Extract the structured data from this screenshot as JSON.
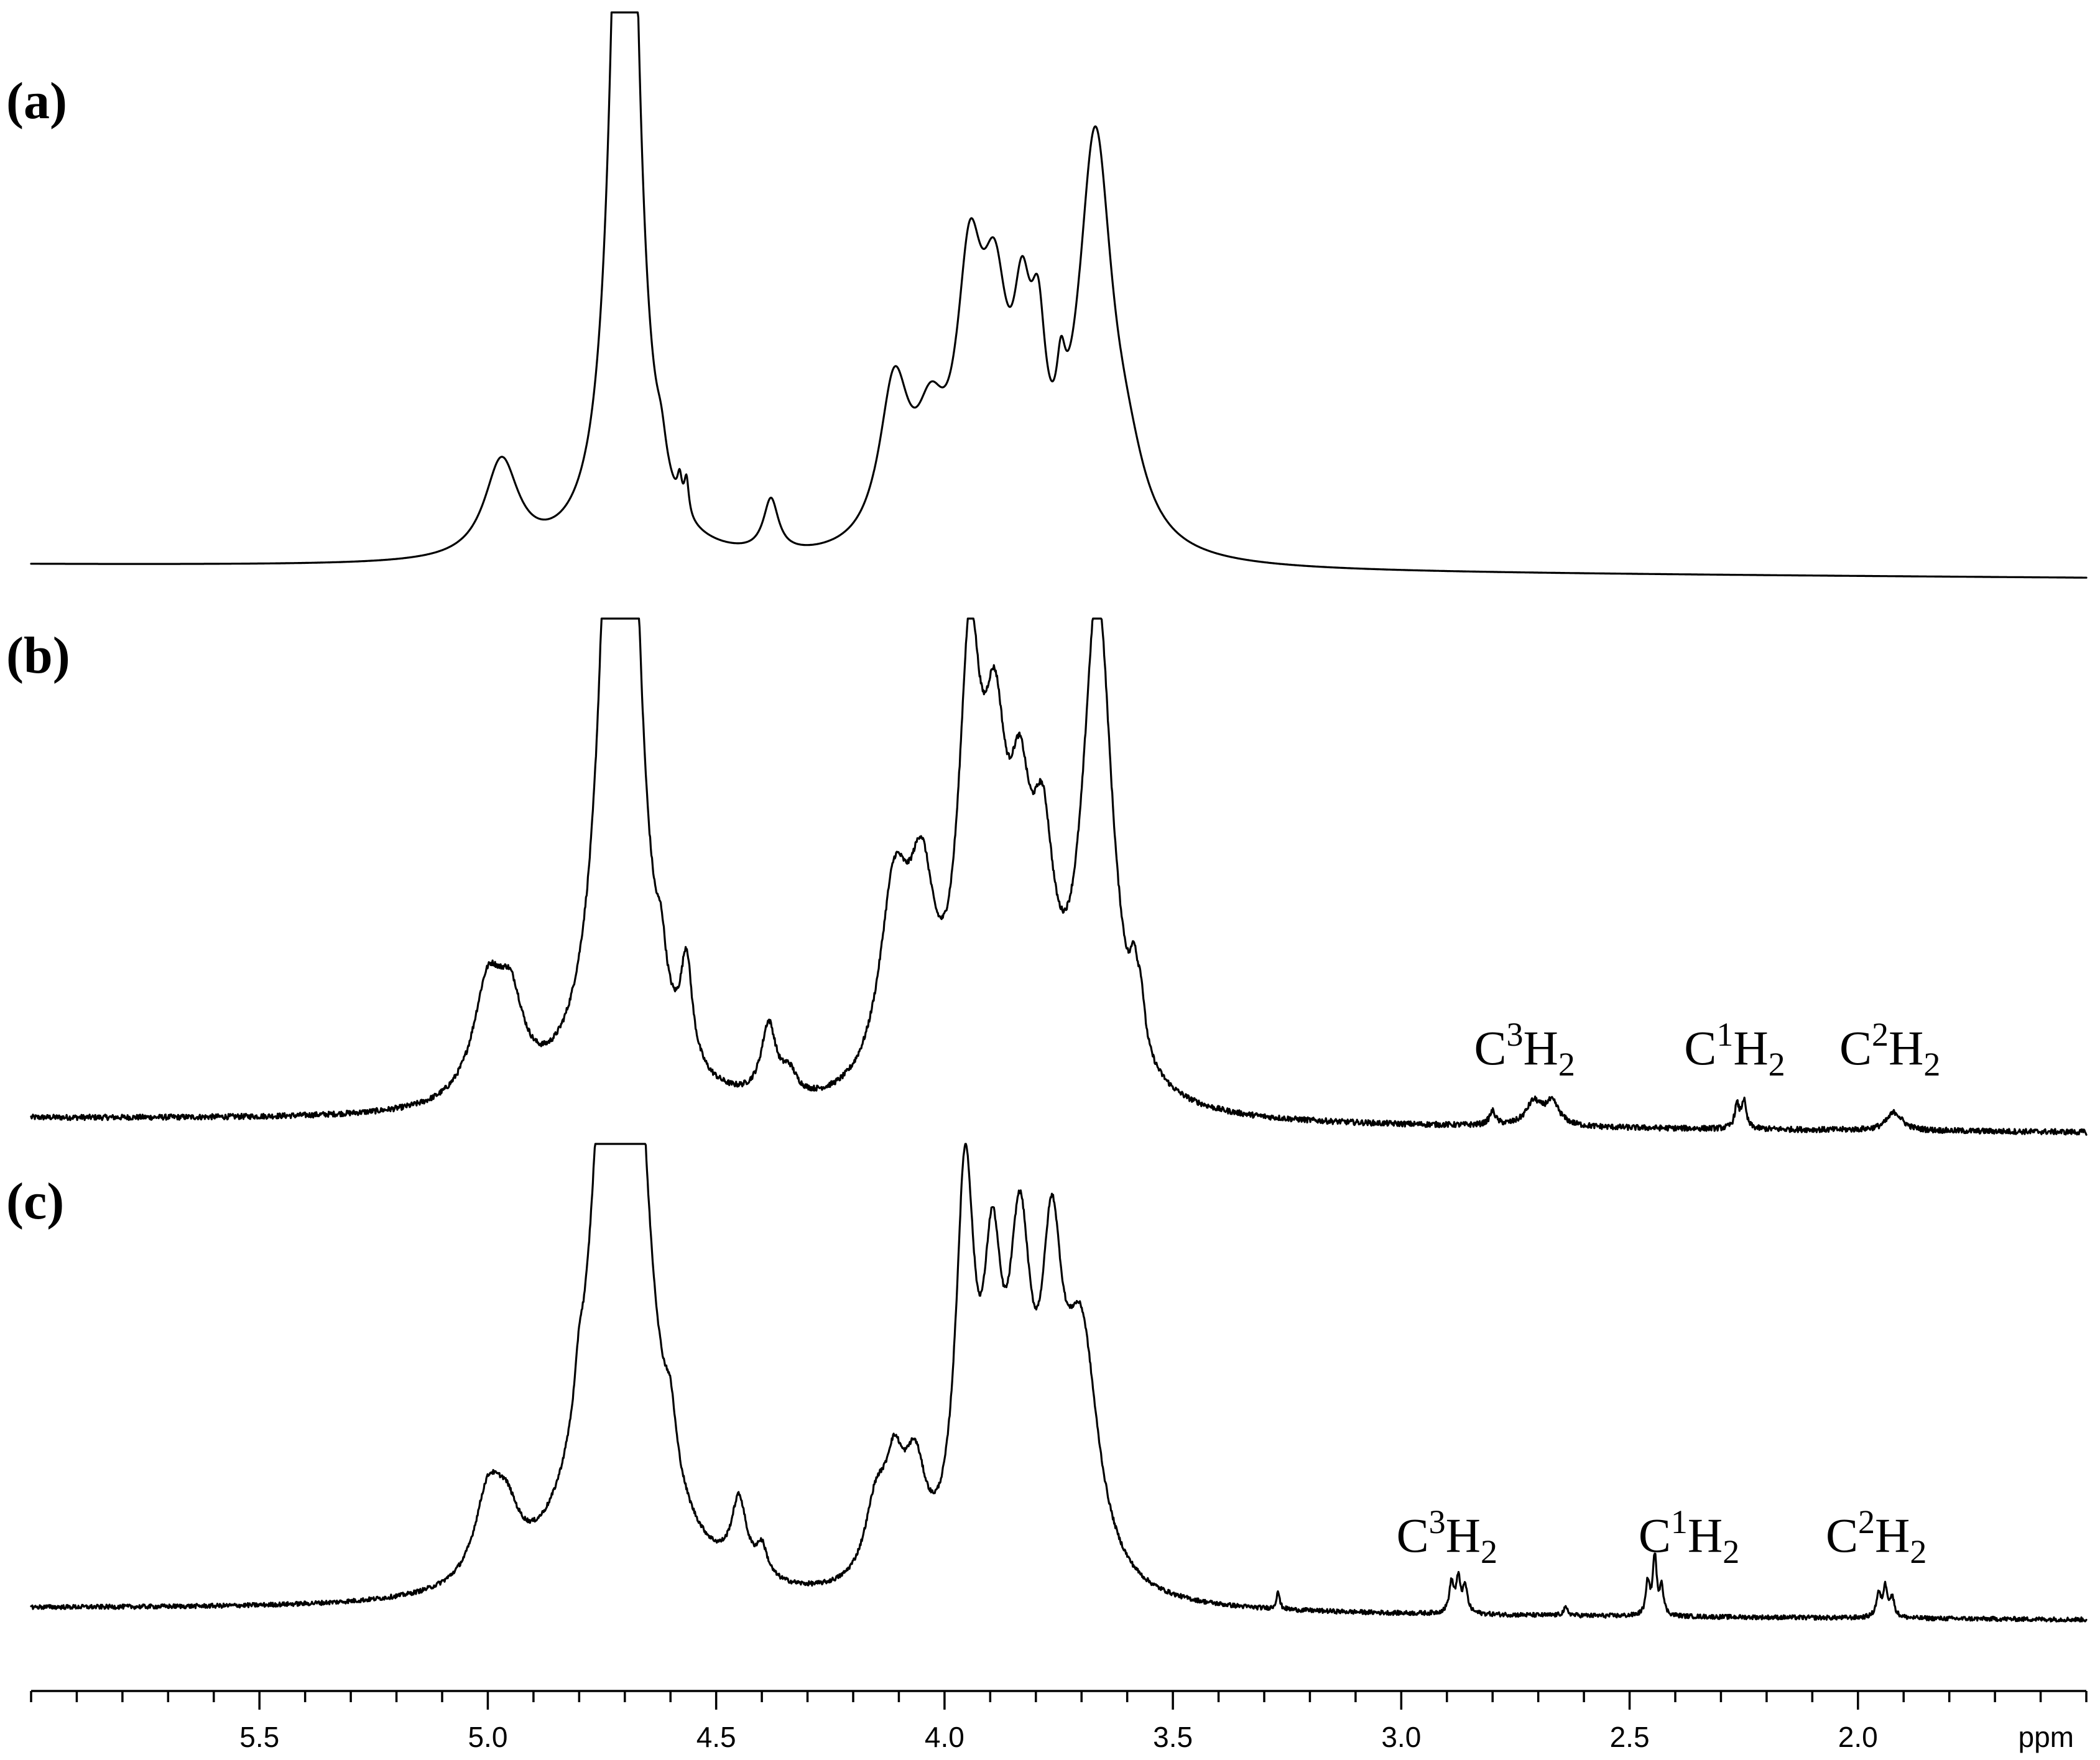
{
  "chart_data": {
    "type": "line",
    "title": "",
    "xlabel": "ppm",
    "ylabel": "",
    "x_reversed": true,
    "xlim": [
      6.0,
      1.5
    ],
    "x_ticks": [
      5.5,
      5.0,
      4.5,
      4.0,
      3.5,
      3.0,
      2.5,
      2.0
    ],
    "x_tick_labels": [
      "5.5",
      "5.0",
      "4.5",
      "4.0",
      "3.5",
      "3.0",
      "2.5",
      "2.0"
    ],
    "x_minor_step": 0.1,
    "grid": false,
    "panels": [
      {
        "label": "(a)",
        "baseline_left": 0.03,
        "baseline_right": 0.0,
        "peaks": [
          {
            "x": 4.97,
            "h": 0.22,
            "w": 0.045
          },
          {
            "x": 4.7,
            "h": 2.6,
            "w": 0.028
          },
          {
            "x": 4.62,
            "h": 0.07,
            "w": 0.014
          },
          {
            "x": 4.58,
            "h": 0.06,
            "w": 0.006
          },
          {
            "x": 4.565,
            "h": 0.08,
            "w": 0.006
          },
          {
            "x": 4.38,
            "h": 0.12,
            "w": 0.02
          },
          {
            "x": 4.11,
            "h": 0.36,
            "w": 0.04
          },
          {
            "x": 4.03,
            "h": 0.22,
            "w": 0.04
          },
          {
            "x": 3.945,
            "h": 0.55,
            "w": 0.035
          },
          {
            "x": 3.89,
            "h": 0.45,
            "w": 0.035
          },
          {
            "x": 3.83,
            "h": 0.38,
            "w": 0.025
          },
          {
            "x": 3.795,
            "h": 0.32,
            "w": 0.02
          },
          {
            "x": 3.745,
            "h": 0.15,
            "w": 0.012
          },
          {
            "x": 3.67,
            "h": 0.92,
            "w": 0.045
          },
          {
            "x": 3.6,
            "h": 0.12,
            "w": 0.05
          }
        ],
        "annotations": []
      },
      {
        "label": "(b)",
        "baseline_left": 0.03,
        "baseline_right": 0.0,
        "peaks": [
          {
            "x": 5.0,
            "h": 0.24,
            "w": 0.04
          },
          {
            "x": 4.95,
            "h": 0.18,
            "w": 0.035
          },
          {
            "x": 4.71,
            "h": 2.6,
            "w": 0.035
          },
          {
            "x": 4.62,
            "h": 0.1,
            "w": 0.012
          },
          {
            "x": 4.565,
            "h": 0.22,
            "w": 0.015
          },
          {
            "x": 4.385,
            "h": 0.16,
            "w": 0.02
          },
          {
            "x": 4.34,
            "h": 0.05,
            "w": 0.02
          },
          {
            "x": 4.11,
            "h": 0.42,
            "w": 0.04
          },
          {
            "x": 4.05,
            "h": 0.38,
            "w": 0.035
          },
          {
            "x": 3.945,
            "h": 0.85,
            "w": 0.03
          },
          {
            "x": 3.89,
            "h": 0.6,
            "w": 0.032
          },
          {
            "x": 3.835,
            "h": 0.45,
            "w": 0.03
          },
          {
            "x": 3.785,
            "h": 0.42,
            "w": 0.03
          },
          {
            "x": 3.665,
            "h": 1.1,
            "w": 0.04
          },
          {
            "x": 3.585,
            "h": 0.12,
            "w": 0.01
          },
          {
            "x": 3.57,
            "h": 0.1,
            "w": 0.01
          },
          {
            "x": 2.8,
            "h": 0.03,
            "w": 0.008
          },
          {
            "x": 2.71,
            "h": 0.05,
            "w": 0.02
          },
          {
            "x": 2.67,
            "h": 0.05,
            "w": 0.02
          },
          {
            "x": 2.265,
            "h": 0.05,
            "w": 0.006
          },
          {
            "x": 2.25,
            "h": 0.06,
            "w": 0.006
          },
          {
            "x": 1.92,
            "h": 0.04,
            "w": 0.02
          }
        ],
        "annotations": [
          {
            "base": "C",
            "sup": "3",
            "rest": "H",
            "sub": "2",
            "x": 2.73
          },
          {
            "base": "C",
            "sup": "1",
            "rest": "H",
            "sub": "2",
            "x": 2.27
          },
          {
            "base": "C",
            "sup": "2",
            "rest": "H",
            "sub": "2",
            "x": 1.93
          }
        ]
      },
      {
        "label": "(c)",
        "baseline_left": 0.03,
        "baseline_right": 0.0,
        "peaks": [
          {
            "x": 5.0,
            "h": 0.22,
            "w": 0.035
          },
          {
            "x": 4.96,
            "h": 0.15,
            "w": 0.035
          },
          {
            "x": 4.8,
            "h": 0.1,
            "w": 0.01
          },
          {
            "x": 4.71,
            "h": 2.8,
            "w": 0.05
          },
          {
            "x": 4.6,
            "h": 0.14,
            "w": 0.015
          },
          {
            "x": 4.45,
            "h": 0.2,
            "w": 0.02
          },
          {
            "x": 4.4,
            "h": 0.08,
            "w": 0.015
          },
          {
            "x": 4.15,
            "h": 0.2,
            "w": 0.03
          },
          {
            "x": 4.11,
            "h": 0.25,
            "w": 0.025
          },
          {
            "x": 4.065,
            "h": 0.28,
            "w": 0.03
          },
          {
            "x": 3.955,
            "h": 1.05,
            "w": 0.025
          },
          {
            "x": 3.895,
            "h": 0.7,
            "w": 0.025
          },
          {
            "x": 3.835,
            "h": 0.82,
            "w": 0.03
          },
          {
            "x": 3.765,
            "h": 0.75,
            "w": 0.028
          },
          {
            "x": 3.7,
            "h": 0.65,
            "w": 0.045
          },
          {
            "x": 3.27,
            "h": 0.05,
            "w": 0.004
          },
          {
            "x": 2.89,
            "h": 0.08,
            "w": 0.006
          },
          {
            "x": 2.875,
            "h": 0.09,
            "w": 0.006
          },
          {
            "x": 2.86,
            "h": 0.07,
            "w": 0.006
          },
          {
            "x": 2.64,
            "h": 0.02,
            "w": 0.006
          },
          {
            "x": 2.46,
            "h": 0.09,
            "w": 0.005
          },
          {
            "x": 2.445,
            "h": 0.16,
            "w": 0.005
          },
          {
            "x": 2.43,
            "h": 0.08,
            "w": 0.005
          },
          {
            "x": 1.955,
            "h": 0.06,
            "w": 0.006
          },
          {
            "x": 1.94,
            "h": 0.08,
            "w": 0.006
          },
          {
            "x": 1.925,
            "h": 0.05,
            "w": 0.006
          }
        ],
        "annotations": [
          {
            "base": "C",
            "sup": "3",
            "rest": "H",
            "sub": "2",
            "x": 2.9
          },
          {
            "base": "C",
            "sup": "1",
            "rest": "H",
            "sub": "2",
            "x": 2.37
          },
          {
            "base": "C",
            "sup": "2",
            "rest": "H",
            "sub": "2",
            "x": 1.96
          }
        ]
      }
    ]
  }
}
